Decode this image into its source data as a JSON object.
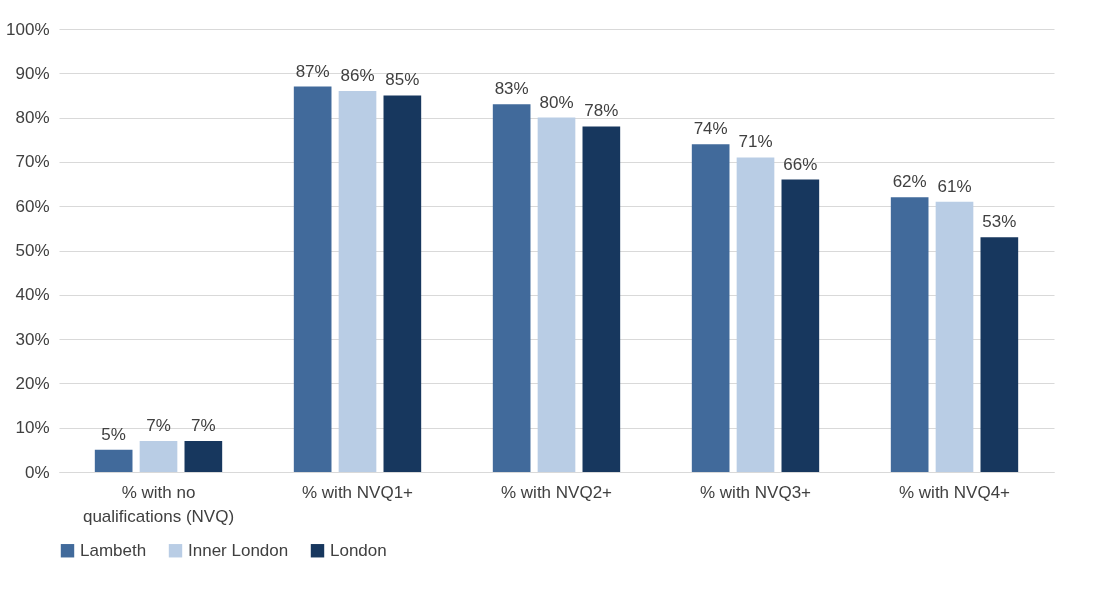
{
  "chart_data": {
    "type": "bar",
    "categories": [
      "% with no qualifications (NVQ)",
      "% with NVQ1+",
      "% with NVQ2+",
      "% with NVQ3+",
      "% with NVQ4+"
    ],
    "series": [
      {
        "name": "Lambeth",
        "color": "#416a9b",
        "values": [
          5,
          87,
          83,
          74,
          62
        ],
        "value_labels": [
          "5%",
          "87%",
          "83%",
          "74%",
          "62%"
        ]
      },
      {
        "name": "Inner London",
        "color": "#b9cde5",
        "values": [
          7,
          86,
          80,
          71,
          61
        ],
        "value_labels": [
          "7%",
          "86%",
          "80%",
          "71%",
          "61%"
        ]
      },
      {
        "name": "London",
        "color": "#17375e",
        "values": [
          7,
          85,
          78,
          66,
          53
        ],
        "value_labels": [
          "7%",
          "85%",
          "78%",
          "66%",
          "53%"
        ]
      }
    ],
    "ylim": [
      0,
      100
    ],
    "yticks": [
      {
        "value": 0,
        "label": "0%"
      },
      {
        "value": 10,
        "label": "10%"
      },
      {
        "value": 20,
        "label": "20%"
      },
      {
        "value": 30,
        "label": "30%"
      },
      {
        "value": 40,
        "label": "40%"
      },
      {
        "value": 50,
        "label": "50%"
      },
      {
        "value": 60,
        "label": "60%"
      },
      {
        "value": 70,
        "label": "70%"
      },
      {
        "value": 80,
        "label": "80%"
      },
      {
        "value": 90,
        "label": "90%"
      },
      {
        "value": 100,
        "label": "100%"
      }
    ],
    "grid": "y",
    "legend": "bottom"
  }
}
